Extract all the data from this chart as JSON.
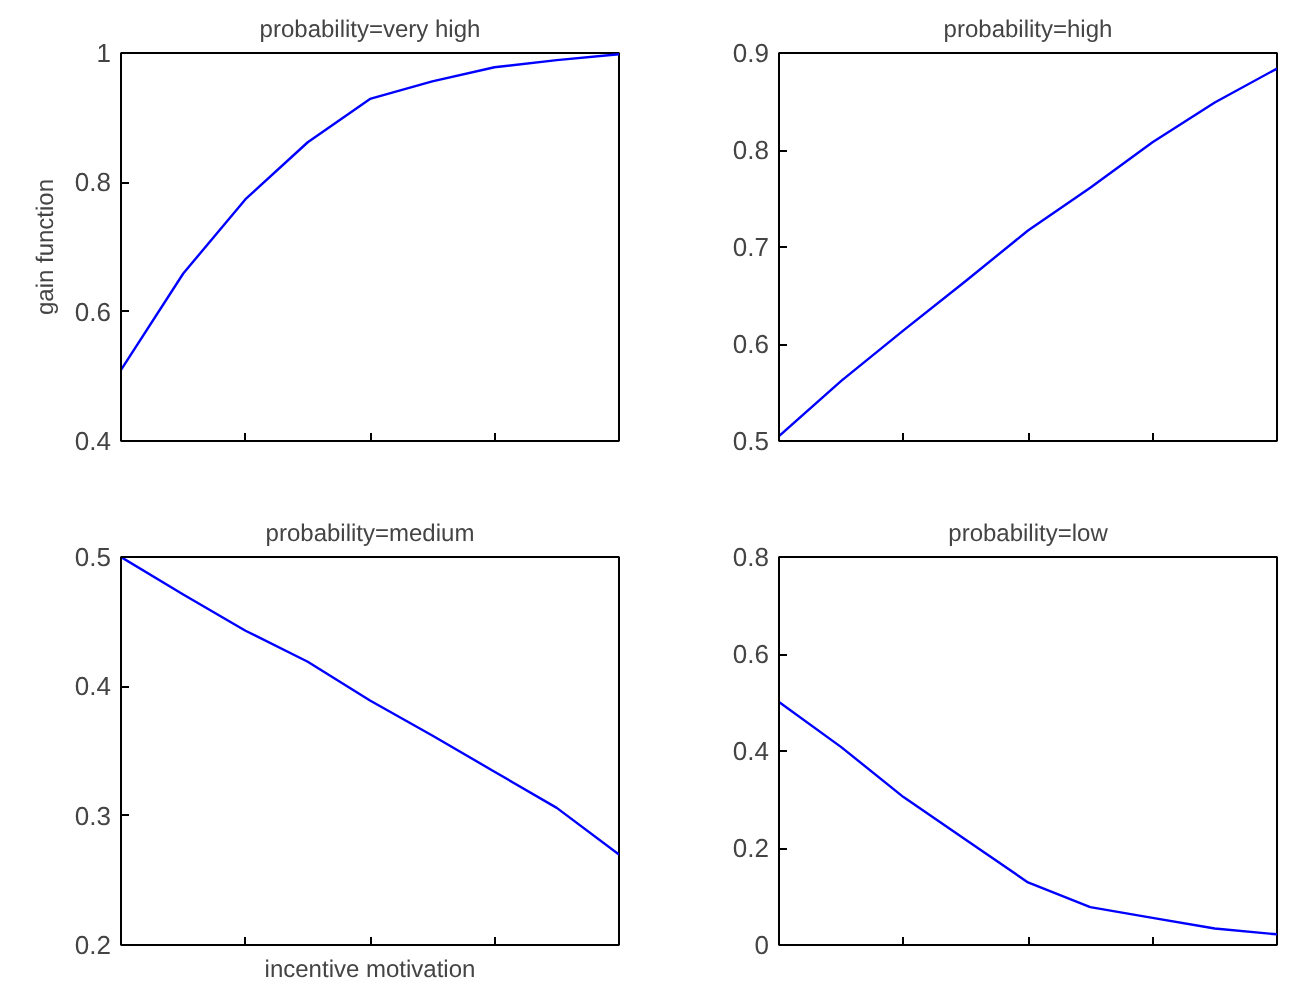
{
  "chart_data": [
    {
      "type": "line",
      "title": "probability=very high",
      "ylabel": "gain function",
      "categories": [
        null,
        null,
        null,
        null,
        null,
        null,
        null,
        null,
        null
      ],
      "series": [
        {
          "color": "#0000ff",
          "values": [
            0.51,
            0.659,
            0.774,
            0.862,
            0.929,
            0.956,
            0.978,
            0.989,
            0.998
          ]
        }
      ],
      "ylim": [
        0.4,
        1
      ],
      "yticks": [
        0.4,
        0.6,
        0.8,
        1
      ],
      "tick_labels": "y"
    },
    {
      "type": "line",
      "title": "probability=high",
      "categories": [
        null,
        null,
        null,
        null,
        null,
        null,
        null,
        null,
        null
      ],
      "series": [
        {
          "color": "#0000ff",
          "values": [
            0.505,
            0.562,
            0.614,
            0.665,
            0.717,
            0.761,
            0.808,
            0.849,
            0.884
          ]
        }
      ],
      "ylim": [
        0.5,
        0.9
      ],
      "yticks": [
        0.5,
        0.6,
        0.7,
        0.8,
        0.9
      ],
      "tick_labels": "y"
    },
    {
      "type": "line",
      "title": "probability=medium",
      "xlabel": "incentive motivation",
      "categories": [
        null,
        null,
        null,
        null,
        null,
        null,
        null,
        null,
        null
      ],
      "series": [
        {
          "color": "#0000ff",
          "values": [
            0.5,
            0.471,
            0.443,
            0.419,
            0.389,
            0.362,
            0.334,
            0.306,
            0.27
          ]
        }
      ],
      "ylim": [
        0.2,
        0.5
      ],
      "yticks": [
        0.2,
        0.3,
        0.4,
        0.5
      ],
      "tick_labels": "y"
    },
    {
      "type": "line",
      "title": "probability=low",
      "categories": [
        null,
        null,
        null,
        null,
        null,
        null,
        null,
        null,
        null
      ],
      "series": [
        {
          "color": "#0000ff",
          "values": [
            0.501,
            0.408,
            0.305,
            0.217,
            0.129,
            0.078,
            0.056,
            0.034,
            0.022
          ]
        }
      ],
      "ylim": [
        0,
        0.8
      ],
      "yticks": [
        0,
        0.2,
        0.4,
        0.6,
        0.8
      ],
      "tick_labels": "y"
    }
  ]
}
